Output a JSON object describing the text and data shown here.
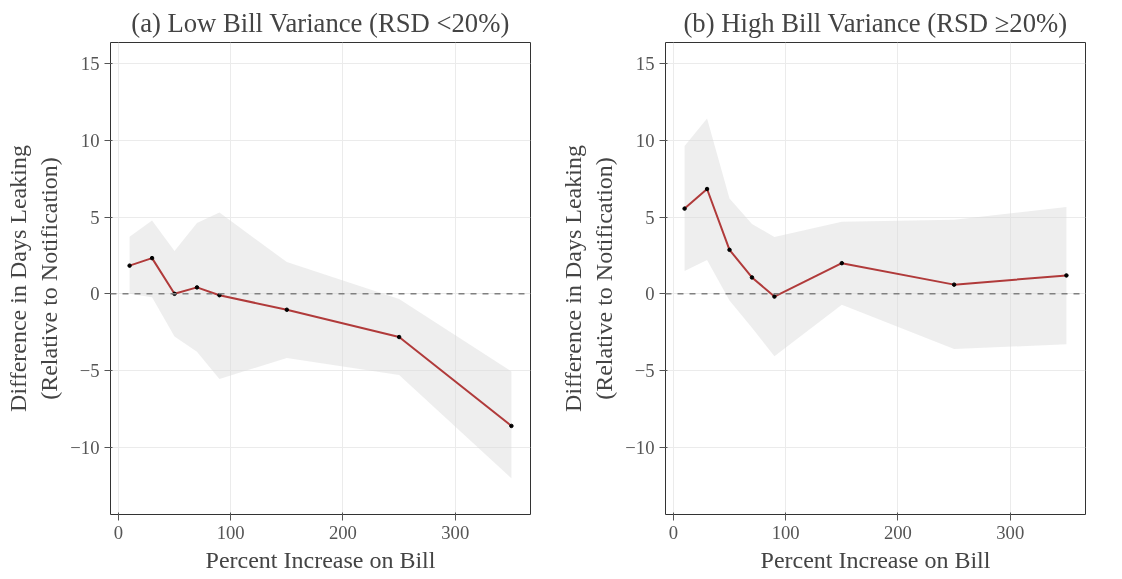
{
  "chart_data": [
    {
      "type": "line",
      "title": "(a) Low Bill Variance (RSD <20%)",
      "xlabel": "Percent Increase on Bill",
      "ylabel": "Difference in Days Leaking\n(Relative to Notification)",
      "x": [
        10,
        30,
        50,
        70,
        90,
        150,
        250,
        350
      ],
      "series": [
        {
          "color": "#b03a3a",
          "values": [
            1.84,
            2.33,
            0,
            0.42,
            -0.09,
            -1.04,
            -2.82,
            -8.62
          ],
          "upper": [
            3.73,
            4.78,
            2.8,
            4.62,
            5.31,
            2.07,
            -0.33,
            -5.07
          ],
          "lower": [
            0,
            -0.22,
            -2.78,
            -3.78,
            -5.56,
            -4.18,
            -5.29,
            -12.04
          ]
        }
      ],
      "xlim": [
        -7,
        367
      ],
      "ylim": [
        -14.4,
        16.4
      ],
      "xticks": [
        0,
        100,
        200,
        300
      ],
      "yticks": [
        -10,
        -5,
        0,
        5,
        10,
        15
      ],
      "grid": true,
      "marker": "circle",
      "line_style": "solid",
      "ref_lines": [
        {
          "axis": "y",
          "value": 0,
          "color": "#808080",
          "line_style": "dashed"
        }
      ]
    },
    {
      "type": "line",
      "title": "(b) High Bill Variance (RSD ≥20%)",
      "xlabel": "Percent Increase on Bill",
      "ylabel": "Difference in Days Leaking\n(Relative to Notification)",
      "x": [
        10,
        30,
        50,
        70,
        90,
        150,
        250,
        350
      ],
      "series": [
        {
          "color": "#b03a3a",
          "values": [
            5.56,
            6.84,
            2.87,
            1.07,
            -0.18,
            2.0,
            0.6,
            1.2
          ],
          "upper": [
            9.64,
            11.44,
            6.22,
            4.56,
            3.71,
            4.71,
            4.84,
            5.67
          ],
          "lower": [
            1.49,
            2.2,
            -0.44,
            -2.22,
            -4.07,
            -0.71,
            -3.6,
            -3.29
          ]
        }
      ],
      "xlim": [
        -7,
        367
      ],
      "ylim": [
        -14.4,
        16.4
      ],
      "xticks": [
        0,
        100,
        200,
        300
      ],
      "yticks": [
        -10,
        -5,
        0,
        5,
        10,
        15
      ],
      "grid": true,
      "marker": "circle",
      "line_style": "solid",
      "ref_lines": [
        {
          "axis": "y",
          "value": 0,
          "color": "#808080",
          "line_style": "dashed"
        }
      ]
    }
  ]
}
